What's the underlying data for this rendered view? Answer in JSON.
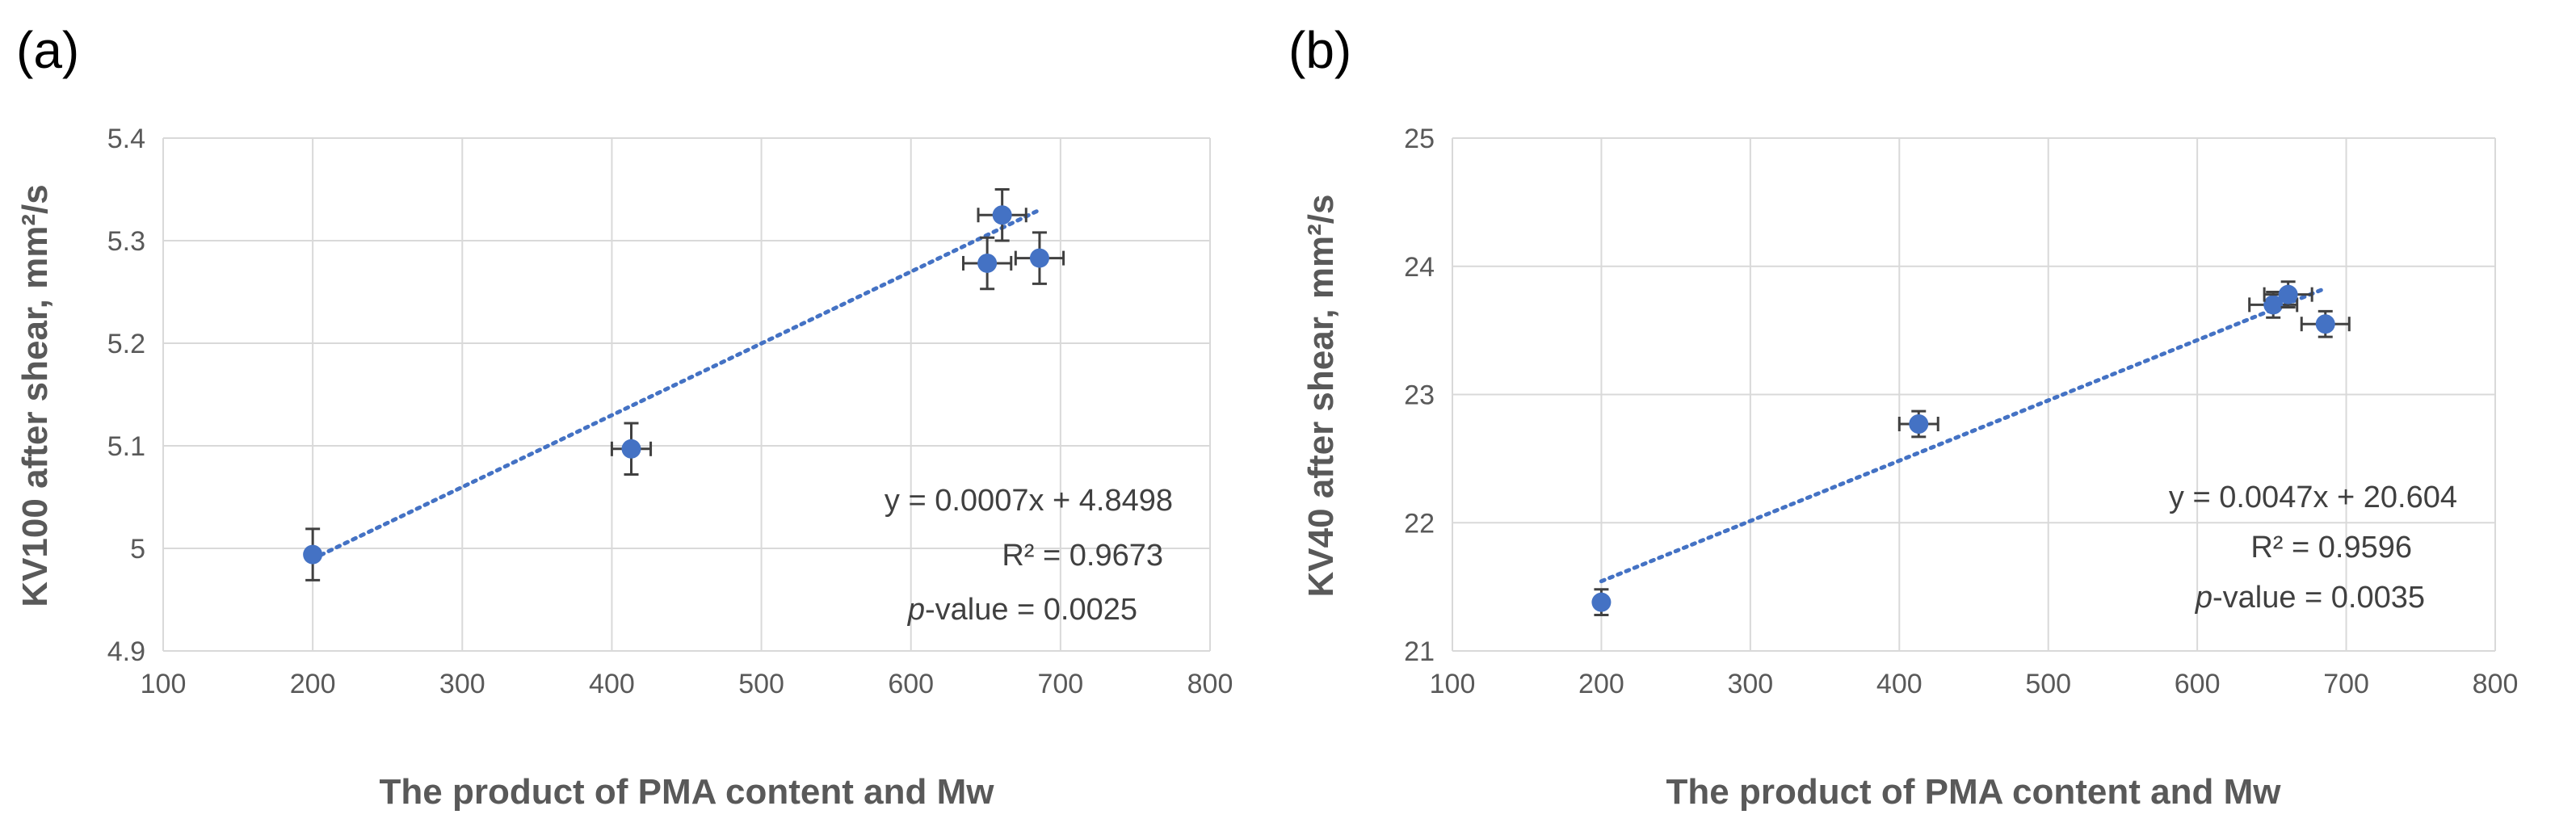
{
  "chart_data": [
    {
      "panel_label": "(a)",
      "type": "scatter",
      "xlabel": "The product of PMA content and Mw",
      "ylabel": "KV100 after shear, mm²/s",
      "xlim": [
        100,
        800
      ],
      "ylim": [
        4.9,
        5.4
      ],
      "x_ticks": [
        100,
        200,
        300,
        400,
        500,
        600,
        700,
        800
      ],
      "y_ticks": [
        4.9,
        5.0,
        5.1,
        5.2,
        5.3,
        5.4
      ],
      "x_tick_labels": [
        "100",
        "200",
        "300",
        "400",
        "500",
        "600",
        "700",
        "800"
      ],
      "y_tick_labels": [
        "4.9",
        "5",
        "5.1",
        "5.2",
        "5.3",
        "5.4"
      ],
      "grid": true,
      "series": [
        {
          "name": "KV100",
          "points": [
            {
              "x": 200,
              "y": 4.994,
              "xerr": 0,
              "yerr": 0.025
            },
            {
              "x": 413,
              "y": 5.097,
              "xerr": 13,
              "yerr": 0.025
            },
            {
              "x": 651,
              "y": 5.278,
              "xerr": 16,
              "yerr": 0.025
            },
            {
              "x": 661,
              "y": 5.325,
              "xerr": 16,
              "yerr": 0.025
            },
            {
              "x": 686,
              "y": 5.283,
              "xerr": 16,
              "yerr": 0.025
            }
          ]
        }
      ],
      "trendline": {
        "slope": 0.0007,
        "intercept": 4.8498,
        "x_from": 200,
        "x_to": 686
      },
      "annotations": {
        "equation": "y = 0.0007x + 4.8498",
        "r_squared": "R² = 0.9673",
        "p_prefix": "p",
        "p_suffix": "-value = 0.0025"
      }
    },
    {
      "panel_label": "(b)",
      "type": "scatter",
      "xlabel": "The product of PMA content and Mw",
      "ylabel": "KV40 after shear, mm²/s",
      "xlim": [
        100,
        800
      ],
      "ylim": [
        21,
        25
      ],
      "x_ticks": [
        100,
        200,
        300,
        400,
        500,
        600,
        700,
        800
      ],
      "y_ticks": [
        21,
        22,
        23,
        24,
        25
      ],
      "x_tick_labels": [
        "100",
        "200",
        "300",
        "400",
        "500",
        "600",
        "700",
        "800"
      ],
      "y_tick_labels": [
        "21",
        "22",
        "23",
        "24",
        "25"
      ],
      "grid": true,
      "series": [
        {
          "name": "KV40",
          "points": [
            {
              "x": 200,
              "y": 21.38,
              "xerr": 0,
              "yerr": 0.1
            },
            {
              "x": 413,
              "y": 22.77,
              "xerr": 13,
              "yerr": 0.1
            },
            {
              "x": 651,
              "y": 23.7,
              "xerr": 16,
              "yerr": 0.1
            },
            {
              "x": 661,
              "y": 23.78,
              "xerr": 16,
              "yerr": 0.1
            },
            {
              "x": 686,
              "y": 23.55,
              "xerr": 16,
              "yerr": 0.1
            }
          ]
        }
      ],
      "trendline": {
        "slope": 0.0047,
        "intercept": 20.604,
        "x_from": 200,
        "x_to": 686
      },
      "annotations": {
        "equation": "y = 0.0047x + 20.604",
        "r_squared": "R² = 0.9596",
        "p_prefix": "p",
        "p_suffix": "-value = 0.0035"
      }
    }
  ],
  "colors": {
    "marker": "#4472c4",
    "trendline": "#4472c4",
    "errorbar": "#404040",
    "grid": "#d9d9d9",
    "tick_text": "#595959"
  }
}
